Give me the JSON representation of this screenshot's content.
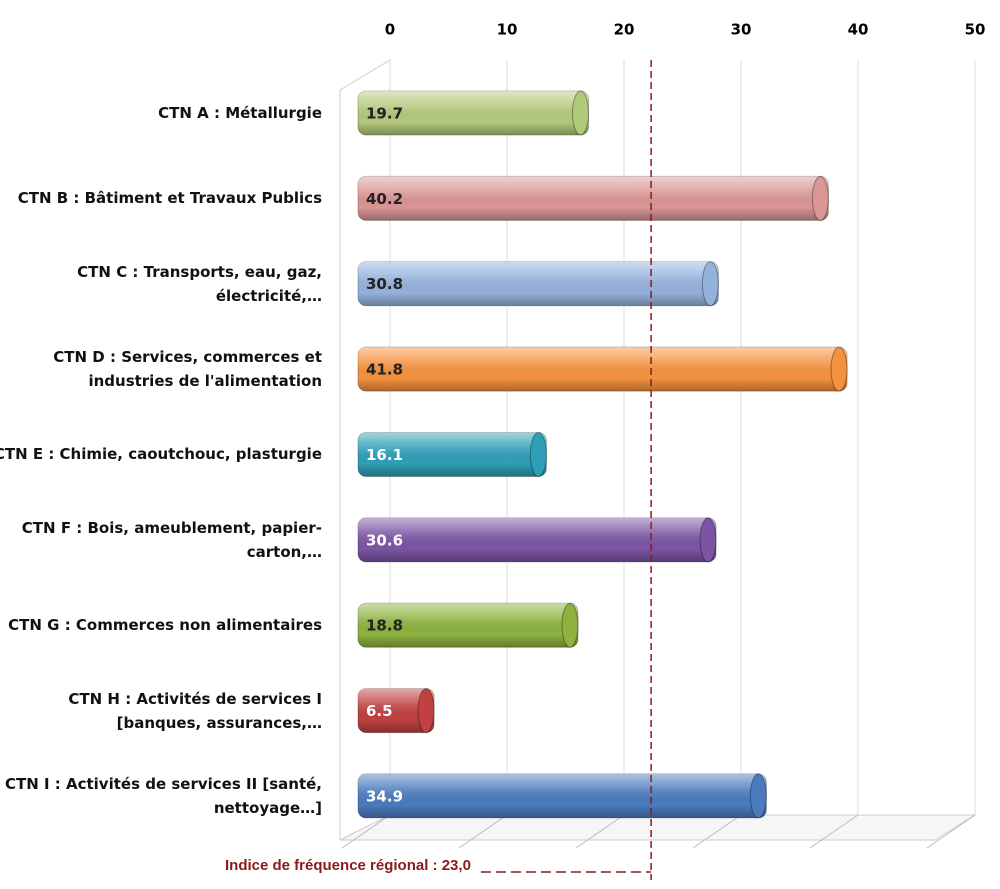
{
  "chart_data": {
    "type": "bar",
    "orientation": "horizontal",
    "categories": [
      "CTN A : Métallurgie",
      "CTN B : Bâtiment et Travaux Publics",
      "CTN C : Transports, eau, gaz, électricité,…",
      "CTN D : Services, commerces et industries de l'alimentation",
      "CTN E : Chimie, caoutchouc, plasturgie",
      "CTN F : Bois, ameublement, papier-carton,…",
      "CTN G : Commerces non alimentaires",
      "CTN H : Activités de services I [banques, assurances,…",
      "CTN I : Activités de services II [santé, nettoyage…]"
    ],
    "values": [
      19.7,
      40.2,
      30.8,
      41.8,
      16.1,
      30.6,
      18.8,
      6.5,
      34.9
    ],
    "colors": [
      "#b3c97a",
      "#d99695",
      "#95b2dc",
      "#f59240",
      "#2f9fb8",
      "#7b55a3",
      "#8db23f",
      "#c0413f",
      "#4b7bbd"
    ],
    "xlim": [
      0,
      50
    ],
    "xticks": [
      0,
      10,
      20,
      30,
      40,
      50
    ],
    "grid": true,
    "reference": {
      "value": 23,
      "label": "Indice de fréquence régional : 23,0",
      "color": "#8b1a1a"
    }
  }
}
